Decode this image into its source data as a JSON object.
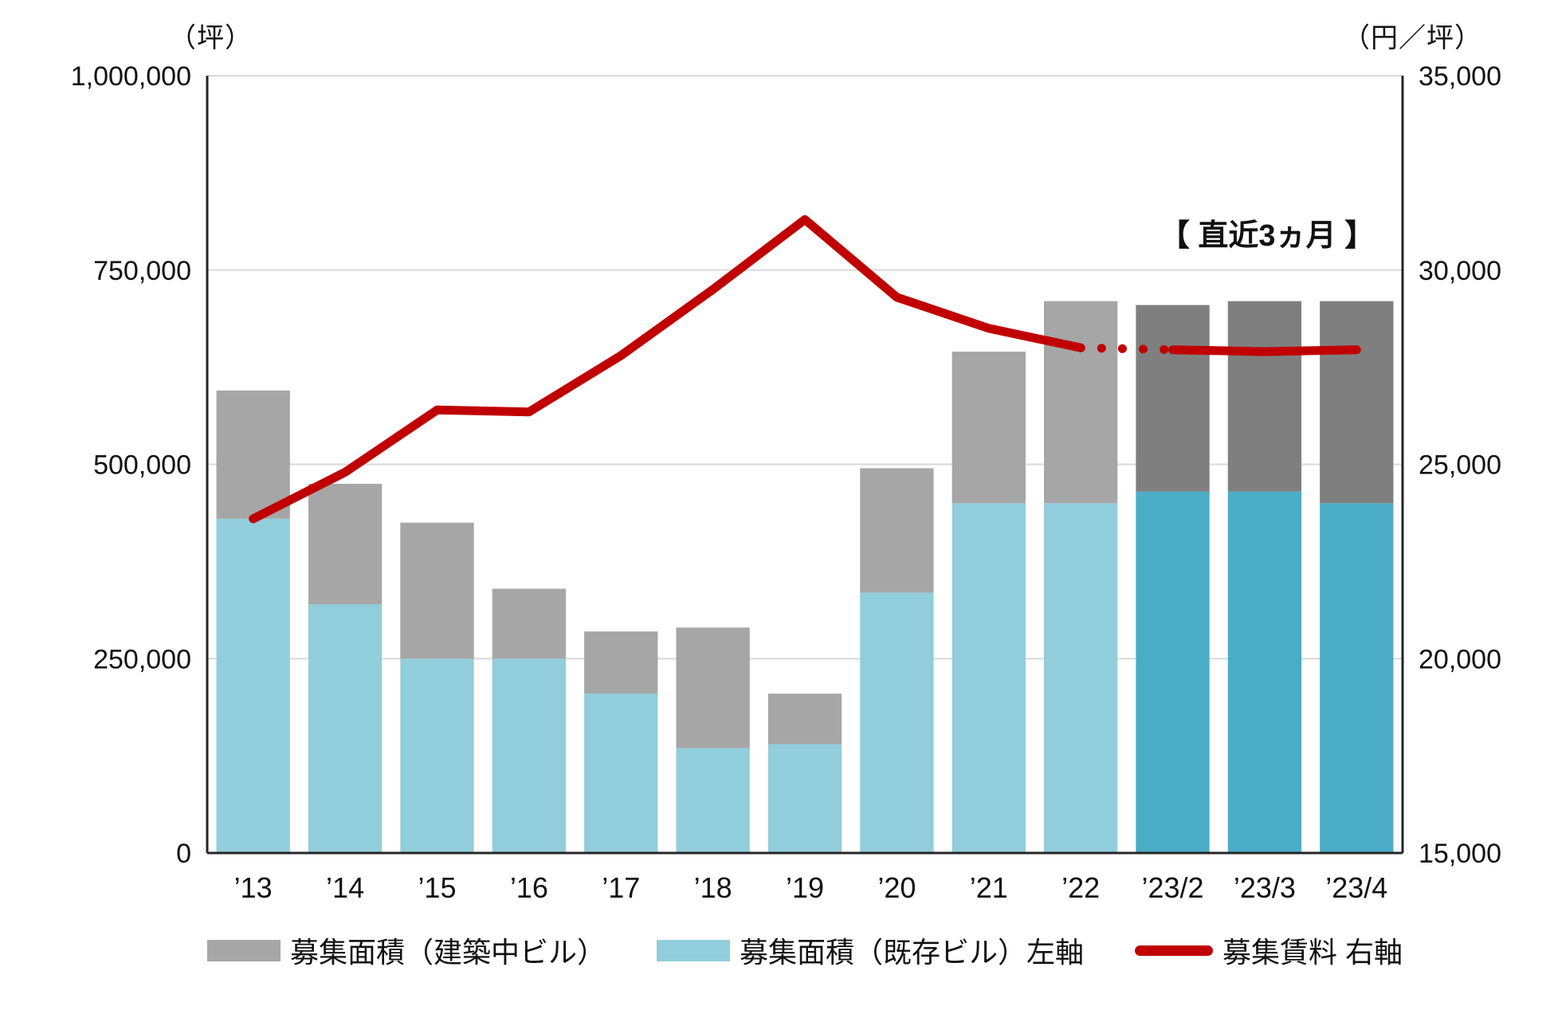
{
  "chart_data": {
    "type": "bar",
    "subtype": "stacked-column-with-line",
    "title": "",
    "categories": [
      "’13",
      "’14",
      "’15",
      "’16",
      "’17",
      "’18",
      "’19",
      "’20",
      "’21",
      "’22",
      "’23/2",
      "’23/3",
      "’23/4"
    ],
    "series": [
      {
        "name": "募集面積（既存ビル）左軸",
        "type": "bar",
        "axis": "left",
        "values": [
          430000,
          320000,
          250000,
          250000,
          205000,
          135000,
          140000,
          335000,
          450000,
          450000,
          465000,
          465000,
          450000
        ]
      },
      {
        "name": "募集面積（建築中ビル）",
        "type": "bar",
        "axis": "left",
        "values": [
          165000,
          155000,
          175000,
          90000,
          80000,
          155000,
          65000,
          160000,
          195000,
          260000,
          240000,
          245000,
          260000
        ]
      },
      {
        "name": "募集賃料 右軸",
        "type": "line",
        "axis": "right",
        "values": [
          23600,
          24800,
          26400,
          26350,
          27800,
          29500,
          31300,
          29300,
          28500,
          28000,
          27950,
          27900,
          27950
        ],
        "dotted_segment": [
          9,
          10
        ]
      }
    ],
    "left_axis": {
      "unit": "（坪）",
      "min": 0,
      "max": 1000000,
      "tick_values": [
        1000000,
        750000,
        500000,
        250000,
        0
      ],
      "tick_labels": [
        "1,000,000",
        "750,000",
        "500,000",
        "250,000",
        "0"
      ]
    },
    "right_axis": {
      "unit": "（円／坪）",
      "min": 15000,
      "max": 35000,
      "tick_values": [
        35000,
        30000,
        25000,
        20000,
        15000
      ],
      "tick_labels": [
        "35,000",
        "30,000",
        "25,000",
        "20,000",
        "15,000"
      ]
    },
    "annotation": "【 直近3ヵ月 】",
    "recent_start_index": 10,
    "grid": true,
    "legend_position": "bottom",
    "legend": [
      {
        "label": "募集面積（建築中ビル）",
        "swatch": "bar",
        "color": "#A6A6A6"
      },
      {
        "label": "募集面積（既存ビル）左軸",
        "swatch": "bar",
        "color": "#92CDDC"
      },
      {
        "label": "募集賃料 右軸",
        "swatch": "line",
        "color": "#C00000"
      }
    ],
    "colors": {
      "existing_bar": "#92CDDC",
      "existing_bar_recent": "#4BACC6",
      "construction_bar": "#A6A6A6",
      "construction_bar_recent": "#7F7F7F",
      "rent_line": "#C00000",
      "gridline": "#D9D9D9",
      "axis_line": "#262626"
    }
  }
}
